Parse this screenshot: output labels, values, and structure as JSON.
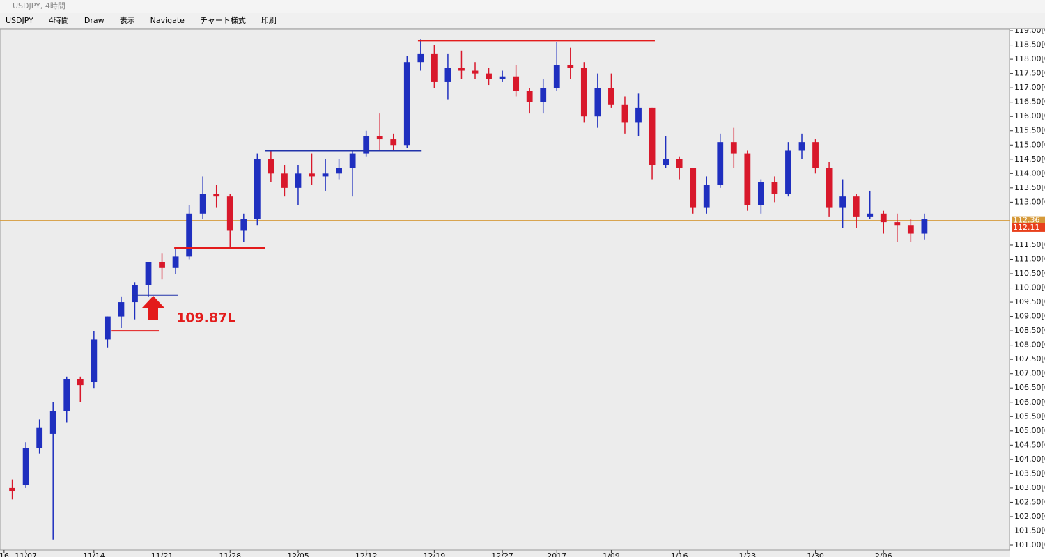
{
  "window": {
    "title": "USDJPY, 4時間"
  },
  "toolbar": {
    "items": [
      "USDJPY",
      "4時間",
      "Draw",
      "表示",
      "Navigate",
      "チャート様式",
      "印刷"
    ]
  },
  "chart_data": {
    "type": "candlestick",
    "up_color": "#1f2fbf",
    "down_color": "#d8182b",
    "ohlc": [
      [
        103.0,
        103.3,
        102.6,
        102.9
      ],
      [
        103.1,
        104.6,
        103.0,
        104.4
      ],
      [
        104.4,
        105.4,
        104.2,
        105.1
      ],
      [
        104.9,
        106.0,
        101.2,
        105.7
      ],
      [
        105.7,
        106.9,
        105.3,
        106.8
      ],
      [
        106.8,
        106.9,
        106.0,
        106.6
      ],
      [
        106.7,
        108.5,
        106.5,
        108.2
      ],
      [
        108.2,
        109.0,
        107.9,
        109.0
      ],
      [
        109.0,
        109.7,
        108.6,
        109.5
      ],
      [
        109.5,
        110.2,
        108.9,
        110.1
      ],
      [
        110.1,
        110.9,
        109.7,
        110.9
      ],
      [
        110.9,
        111.2,
        110.3,
        110.7
      ],
      [
        110.7,
        111.4,
        110.5,
        111.1
      ],
      [
        111.1,
        112.9,
        111.0,
        112.6
      ],
      [
        112.6,
        113.9,
        112.4,
        113.3
      ],
      [
        113.3,
        113.6,
        112.8,
        113.2
      ],
      [
        113.2,
        113.3,
        111.4,
        112.0
      ],
      [
        112.0,
        112.6,
        111.6,
        112.4
      ],
      [
        112.4,
        114.7,
        112.2,
        114.5
      ],
      [
        114.5,
        114.8,
        113.7,
        114.0
      ],
      [
        114.0,
        114.3,
        113.2,
        113.5
      ],
      [
        113.5,
        114.3,
        112.9,
        114.0
      ],
      [
        114.0,
        114.7,
        113.6,
        113.9
      ],
      [
        113.9,
        114.5,
        113.4,
        114.0
      ],
      [
        114.0,
        114.5,
        113.8,
        114.2
      ],
      [
        114.2,
        114.8,
        113.2,
        114.7
      ],
      [
        114.7,
        115.5,
        114.6,
        115.3
      ],
      [
        115.3,
        116.1,
        114.8,
        115.2
      ],
      [
        115.2,
        115.4,
        114.8,
        115.0
      ],
      [
        115.0,
        118.1,
        114.9,
        117.9
      ],
      [
        117.9,
        118.7,
        117.6,
        118.2
      ],
      [
        118.2,
        118.5,
        117.0,
        117.2
      ],
      [
        117.2,
        118.2,
        116.6,
        117.7
      ],
      [
        117.7,
        118.3,
        117.3,
        117.6
      ],
      [
        117.6,
        117.9,
        117.3,
        117.5
      ],
      [
        117.5,
        117.7,
        117.1,
        117.3
      ],
      [
        117.3,
        117.6,
        117.2,
        117.4
      ],
      [
        117.4,
        117.8,
        116.7,
        116.9
      ],
      [
        116.9,
        117.0,
        116.1,
        116.5
      ],
      [
        116.5,
        117.3,
        116.1,
        117.0
      ],
      [
        117.0,
        118.6,
        116.9,
        117.8
      ],
      [
        117.8,
        118.4,
        117.3,
        117.7
      ],
      [
        117.7,
        117.9,
        115.8,
        116.0
      ],
      [
        116.0,
        117.5,
        115.6,
        117.0
      ],
      [
        117.0,
        117.5,
        116.3,
        116.4
      ],
      [
        116.4,
        116.7,
        115.4,
        115.8
      ],
      [
        115.8,
        116.8,
        115.3,
        116.3
      ],
      [
        116.3,
        116.3,
        113.8,
        114.3
      ],
      [
        114.3,
        115.3,
        114.2,
        114.5
      ],
      [
        114.5,
        114.6,
        113.8,
        114.2
      ],
      [
        114.2,
        114.2,
        112.6,
        112.8
      ],
      [
        112.8,
        113.9,
        112.6,
        113.6
      ],
      [
        113.6,
        115.4,
        113.5,
        115.1
      ],
      [
        115.1,
        115.6,
        114.2,
        114.7
      ],
      [
        114.7,
        114.8,
        112.7,
        112.9
      ],
      [
        112.9,
        113.8,
        112.6,
        113.7
      ],
      [
        113.7,
        113.9,
        113.0,
        113.3
      ],
      [
        113.3,
        115.1,
        113.2,
        114.8
      ],
      [
        114.8,
        115.4,
        114.5,
        115.1
      ],
      [
        115.1,
        115.2,
        114.0,
        114.2
      ],
      [
        114.2,
        114.4,
        112.5,
        112.8
      ],
      [
        112.8,
        113.8,
        112.1,
        113.2
      ],
      [
        113.2,
        113.3,
        112.1,
        112.5
      ],
      [
        112.5,
        113.4,
        112.4,
        112.6
      ],
      [
        112.6,
        112.7,
        111.9,
        112.3
      ],
      [
        112.3,
        112.6,
        111.6,
        112.2
      ],
      [
        112.2,
        112.4,
        111.6,
        111.9
      ],
      [
        111.9,
        112.6,
        111.7,
        112.4
      ]
    ],
    "xlim": [
      -0.9,
      73.3
    ],
    "xticks": [
      {
        "value": -0.6,
        "label": "16"
      },
      {
        "value": 1,
        "label": "11/07"
      },
      {
        "value": 6,
        "label": "11/14"
      },
      {
        "value": 11,
        "label": "11/21"
      },
      {
        "value": 16,
        "label": "11/28"
      },
      {
        "value": 21,
        "label": "12/05"
      },
      {
        "value": 26,
        "label": "12/12"
      },
      {
        "value": 31,
        "label": "12/19"
      },
      {
        "value": 36,
        "label": "12/27"
      },
      {
        "value": 40,
        "label": "2017"
      },
      {
        "value": 44,
        "label": "1/09"
      },
      {
        "value": 49,
        "label": "1/16"
      },
      {
        "value": 54,
        "label": "1/23"
      },
      {
        "value": 59,
        "label": "1/30"
      },
      {
        "value": 64,
        "label": "2/06"
      }
    ],
    "ylim": [
      100.83,
      119.05
    ],
    "yticks": [
      {
        "value": 119,
        "label": "119.00[0"
      },
      {
        "value": 118.5,
        "label": "118.50[0"
      },
      {
        "value": 118,
        "label": "118.00[0"
      },
      {
        "value": 117.5,
        "label": "117.50[0"
      },
      {
        "value": 117,
        "label": "117.00[0"
      },
      {
        "value": 116.5,
        "label": "116.50[0"
      },
      {
        "value": 116,
        "label": "116.00[0"
      },
      {
        "value": 115.5,
        "label": "115.50[0"
      },
      {
        "value": 115,
        "label": "115.00[0"
      },
      {
        "value": 114.5,
        "label": "114.50[0"
      },
      {
        "value": 114,
        "label": "114.00[0"
      },
      {
        "value": 113.5,
        "label": "113.50[0"
      },
      {
        "value": 113,
        "label": "113.00[0"
      },
      {
        "value": 111.5,
        "label": "111.50[0"
      },
      {
        "value": 111,
        "label": "111.00[0"
      },
      {
        "value": 110.5,
        "label": "110.50[0"
      },
      {
        "value": 110,
        "label": "110.00[0"
      },
      {
        "value": 109.5,
        "label": "109.50[0"
      },
      {
        "value": 109,
        "label": "109.00[0"
      },
      {
        "value": 108.5,
        "label": "108.50[0"
      },
      {
        "value": 108,
        "label": "108.00[0"
      },
      {
        "value": 107.5,
        "label": "107.50[0"
      },
      {
        "value": 107,
        "label": "107.00[0"
      },
      {
        "value": 106.5,
        "label": "106.50[0"
      },
      {
        "value": 106,
        "label": "106.00[0"
      },
      {
        "value": 105.5,
        "label": "105.50[0"
      },
      {
        "value": 105,
        "label": "105.00[0"
      },
      {
        "value": 104.5,
        "label": "104.50[0"
      },
      {
        "value": 104,
        "label": "104.00[0"
      },
      {
        "value": 103.5,
        "label": "103.50[0"
      },
      {
        "value": 103,
        "label": "103.00[0"
      },
      {
        "value": 102.5,
        "label": "102.50[0"
      },
      {
        "value": 102,
        "label": "102.00[0"
      },
      {
        "value": 101.5,
        "label": "101.50[0"
      },
      {
        "value": 101,
        "label": "101.00[0"
      }
    ],
    "levels": [
      {
        "value": 118.65,
        "color": "#e31b1b",
        "from": 29.8,
        "to": 47.2
      },
      {
        "value": 114.8,
        "color": "#2233aa",
        "from": 18.55,
        "to": 30.07
      },
      {
        "value": 111.4,
        "color": "#e31b1b",
        "from": 11.9,
        "to": 18.55
      },
      {
        "value": 109.75,
        "color": "#2233aa",
        "from": 8.83,
        "to": 12.16
      },
      {
        "value": 108.5,
        "color": "#e31b1b",
        "from": 7.3,
        "to": 10.77
      }
    ],
    "last_price": 112.36,
    "last_price_color": "#d69a3a",
    "bid_price": 112.11,
    "bid_color": "#e8401c",
    "annotation": "109.87L"
  }
}
